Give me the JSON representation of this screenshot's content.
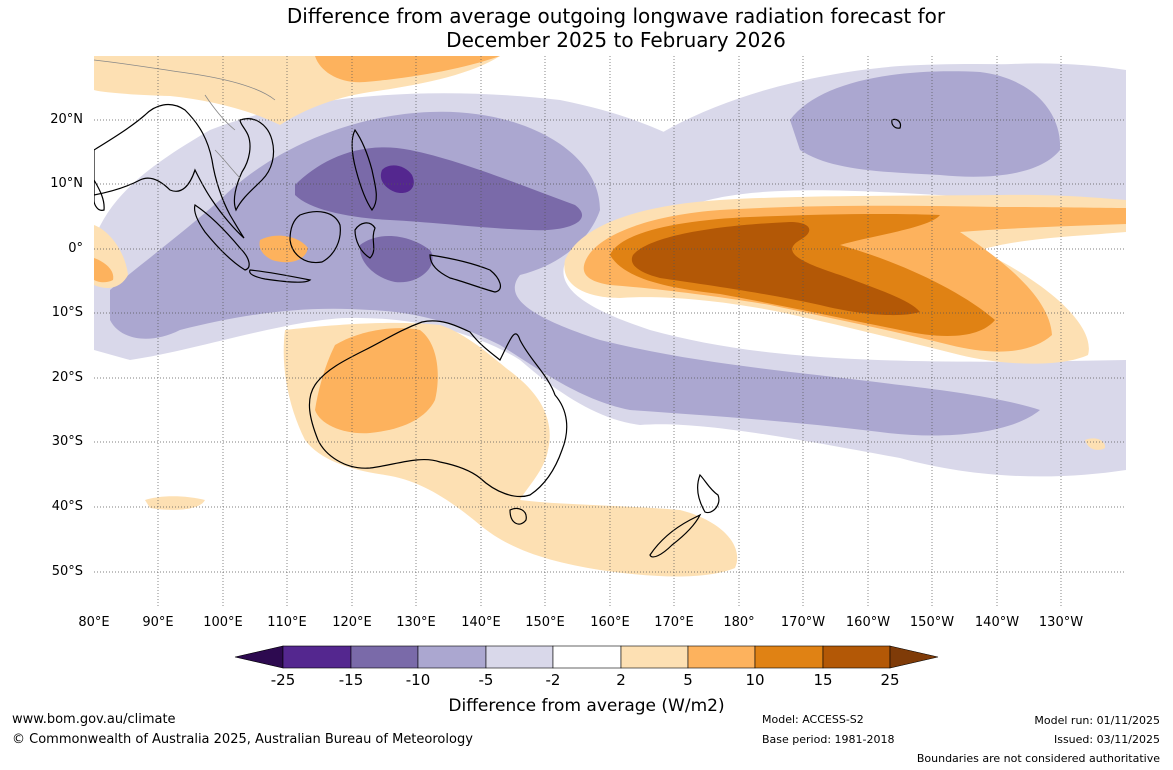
{
  "title": {
    "line1": "Difference from average outgoing longwave radiation forecast for",
    "line2": "December 2025 to February 2026"
  },
  "map": {
    "latitude_labels": [
      "20°N",
      "10°N",
      "0°",
      "10°S",
      "20°S",
      "30°S",
      "40°S",
      "50°S"
    ],
    "longitude_labels": [
      "80°E",
      "90°E",
      "100°E",
      "110°E",
      "120°E",
      "130°E",
      "140°E",
      "150°E",
      "160°E",
      "170°E",
      "180°",
      "170°W",
      "160°W",
      "150°W",
      "140°W",
      "130°W"
    ]
  },
  "colorbar": {
    "title": "Difference from average (W/m2)",
    "ticks": [
      "-25",
      "-15",
      "-10",
      "-5",
      "-2",
      "2",
      "5",
      "10",
      "15",
      "25"
    ],
    "colors": [
      "#2d0a50",
      "#54278f",
      "#7a6aa9",
      "#aba7d0",
      "#d9d8ea",
      "#ffffff",
      "#fde0b3",
      "#fdb25d",
      "#e08214",
      "#b35806",
      "#7f3b08"
    ]
  },
  "footer": {
    "website": "www.bom.gov.au/climate",
    "copyright": "© Commonwealth of Australia 2025, Australian Bureau of Meteorology",
    "model": "Model: ACCESS-S2",
    "base_period": "Base period: 1981-2018",
    "model_run": "Model run: 01/11/2025",
    "issued": "Issued: 03/11/2025",
    "disclaimer": "Boundaries are not considered authoritative"
  }
}
